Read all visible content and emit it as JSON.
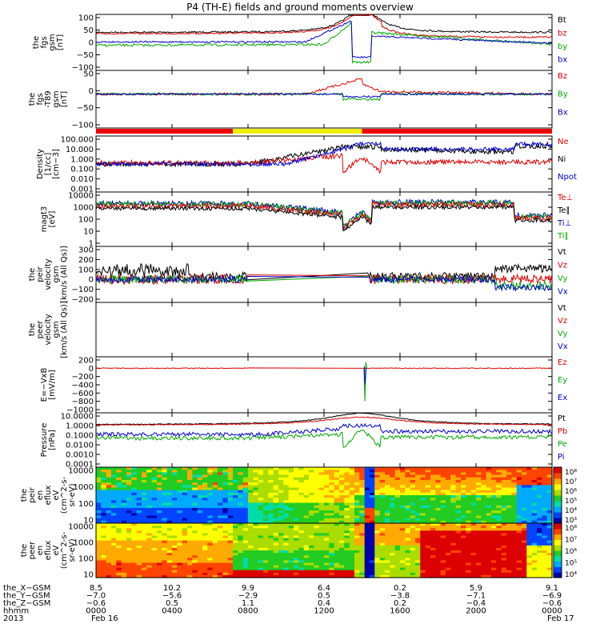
{
  "title": "P4 (TH-E) fields and ground moments overview",
  "chart_data": {
    "type": "line",
    "x_range_hours": [
      0,
      24
    ],
    "panels": [
      {
        "id": "fgs",
        "ylabel": [
          "the",
          "fgs",
          "gsm",
          "[nT]"
        ],
        "ylim": [
          -100,
          100
        ],
        "ticks": [
          "100",
          "50",
          "0",
          "−50",
          "−100"
        ],
        "legend": [
          {
            "text": "Bt",
            "color": "#000000"
          },
          {
            "text": "bz",
            "color": "#dd0000"
          },
          {
            "text": "by",
            "color": "#00aa00"
          },
          {
            "text": "bx",
            "color": "#0000cc"
          }
        ]
      },
      {
        "id": "fgs_t89",
        "ylabel": [
          "the",
          "fgs",
          "-T89",
          "gsm",
          "[nT]"
        ],
        "ylim": [
          -120,
          80
        ],
        "ticks": [
          "50",
          "0",
          "−50",
          "−100"
        ],
        "legend": [
          {
            "text": "Bz",
            "color": "#dd0000"
          },
          {
            "text": "By",
            "color": "#00aa00"
          },
          {
            "text": "Bx",
            "color": "#0000cc"
          }
        ]
      },
      {
        "id": "density",
        "ylabel": [
          "Density",
          "[1/cc]",
          "[cm−3]"
        ],
        "log": true,
        "ticks": [
          "100.000",
          "10.000",
          "1.000",
          "0.100",
          "0.010",
          "0.001"
        ],
        "legend": [
          {
            "text": "Ne",
            "color": "#dd0000"
          },
          {
            "text": "Ni",
            "color": "#000000"
          },
          {
            "text": "Npot",
            "color": "#0000cc"
          }
        ]
      },
      {
        "id": "temp",
        "ylabel": [
          "magt3",
          "[eV]"
        ],
        "log": true,
        "ticks": [
          "10000",
          "1000",
          "100",
          "10",
          "1"
        ],
        "legend": [
          {
            "text": "Te⊥",
            "color": "#dd0000"
          },
          {
            "text": "Te∥",
            "color": "#000000"
          },
          {
            "text": "Ti⊥",
            "color": "#0000cc"
          },
          {
            "text": "Ti∥",
            "color": "#00aa00"
          }
        ]
      },
      {
        "id": "peir_v",
        "ylabel": [
          "the",
          "peir",
          "velocity",
          "gsm",
          "[km/s (All Qs)]"
        ],
        "ylim": [
          -200,
          300
        ],
        "ticks": [
          "300",
          "200",
          "100",
          "0",
          "−100",
          "−200"
        ],
        "legend": [
          {
            "text": "Vt",
            "color": "#000000"
          },
          {
            "text": "Vz",
            "color": "#dd0000"
          },
          {
            "text": "Vy",
            "color": "#00aa00"
          },
          {
            "text": "Vx",
            "color": "#0000cc"
          }
        ]
      },
      {
        "id": "peer_v",
        "ylabel": [
          "the",
          "peer",
          "velocity",
          "gsm",
          "[km/s (All Qs)]"
        ],
        "ticks": [],
        "legend": [
          {
            "text": "Vt",
            "color": "#000000"
          },
          {
            "text": "Vz",
            "color": "#dd0000"
          },
          {
            "text": "Vy",
            "color": "#00aa00"
          },
          {
            "text": "Vx",
            "color": "#0000cc"
          }
        ]
      },
      {
        "id": "efield",
        "ylabel": [
          "E=−VxB",
          "[mV/m]"
        ],
        "ylim": [
          -1000,
          200
        ],
        "ticks": [
          "200",
          "0",
          "−200",
          "−400",
          "−600",
          "−800",
          "−1000"
        ],
        "legend": [
          {
            "text": "Ez",
            "color": "#dd0000"
          },
          {
            "text": "Ey",
            "color": "#00aa00"
          },
          {
            "text": "Ex",
            "color": "#0000cc"
          }
        ]
      },
      {
        "id": "pressure",
        "ylabel": [
          "Pressure",
          "[nPa]"
        ],
        "log": true,
        "ticks": [
          "10.0000",
          "1.0000",
          "0.1000",
          "0.0100",
          "0.0010",
          "0.0001"
        ],
        "legend": [
          {
            "text": "Pt",
            "color": "#000000"
          },
          {
            "text": "Pb",
            "color": "#dd0000"
          },
          {
            "text": "Pe",
            "color": "#00aa00"
          },
          {
            "text": "Pi",
            "color": "#0000cc"
          }
        ]
      },
      {
        "id": "peir_eflux",
        "ylabel": [
          "the",
          "peir",
          "en",
          "eflux",
          "eV",
          "(cm^2-s-",
          "sr-eV)"
        ],
        "ticks": [
          "10000",
          "1000",
          "100",
          "10"
        ],
        "colorbar_ticks": [
          "10⁸",
          "10⁷",
          "10⁶",
          "10⁵",
          "10⁴",
          "10³"
        ]
      },
      {
        "id": "peer_eflux",
        "ylabel": [
          "the",
          "peer",
          "en",
          "eflux",
          "eV",
          "(cm^2-s-",
          "sr-eV)"
        ],
        "ticks": [
          "10000",
          "1000",
          "100",
          "10"
        ],
        "colorbar_ticks": [
          "10⁸",
          "10⁷",
          "10⁶",
          "10⁵",
          "10⁴"
        ]
      }
    ],
    "xaxis": {
      "row_labels": [
        "the_X−GSM",
        "the_Y−GSM",
        "the_Z−GSM",
        "hhmm",
        "2013"
      ],
      "columns": [
        [
          "8.5",
          "−7.0",
          "−0.6",
          "0000",
          "Feb 16"
        ],
        [
          "10.2",
          "−5.6",
          "0.5",
          "0400",
          ""
        ],
        [
          "9.9",
          "−2.9",
          "1.1",
          "0800",
          ""
        ],
        [
          "6.4",
          "0.5",
          "0.4",
          "1200",
          ""
        ],
        [
          "0.2",
          "−3.8",
          "0.2",
          "1600",
          ""
        ],
        [
          "5.9",
          "−7.1",
          "−0.4",
          "2000",
          ""
        ],
        [
          "9.1",
          "−6.9",
          "−0.6",
          "0000",
          "Feb 17"
        ]
      ]
    }
  }
}
